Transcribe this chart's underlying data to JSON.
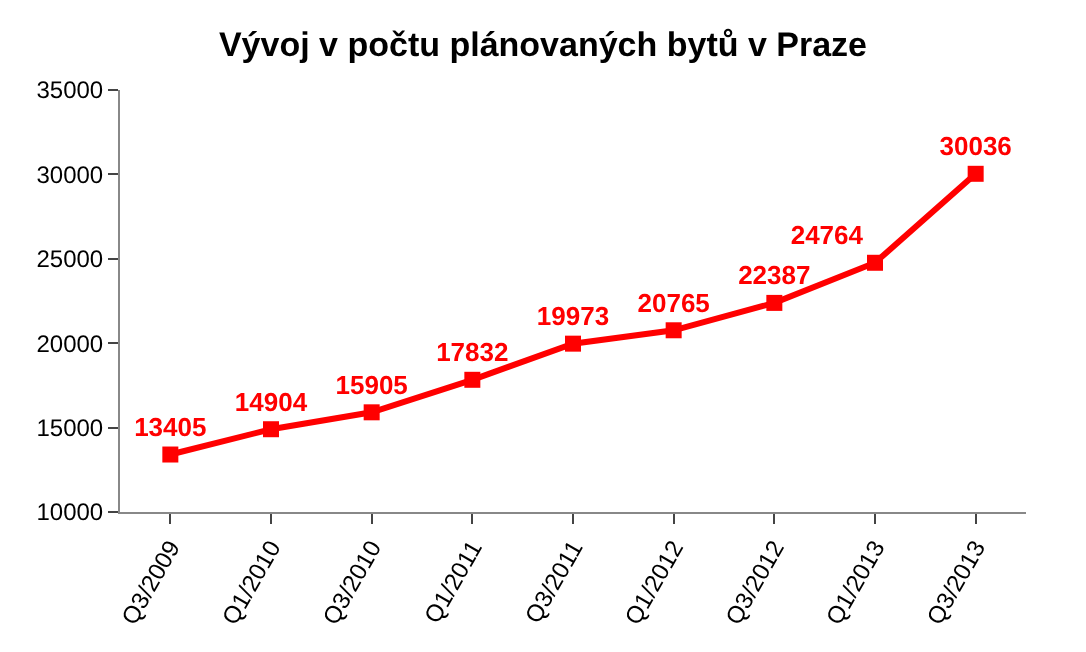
{
  "chart_data": {
    "type": "line",
    "title": "Vývoj v počtu plánovaných bytů v Praze",
    "categories": [
      "Q3/2009",
      "Q1/2010",
      "Q3/2010",
      "Q1/2011",
      "Q3/2011",
      "Q1/2012",
      "Q3/2012",
      "Q1/2013",
      "Q3/2013"
    ],
    "series": [
      {
        "color": "#ff0000",
        "values": [
          13405,
          14904,
          15905,
          17832,
          19973,
          20765,
          22387,
          24764,
          30036
        ]
      }
    ],
    "ylim": [
      10000,
      35000
    ],
    "yticks": [
      10000,
      15000,
      20000,
      25000,
      30000,
      35000
    ],
    "legend": false,
    "marker": "square",
    "line_style": "solid",
    "data_labels": true
  }
}
